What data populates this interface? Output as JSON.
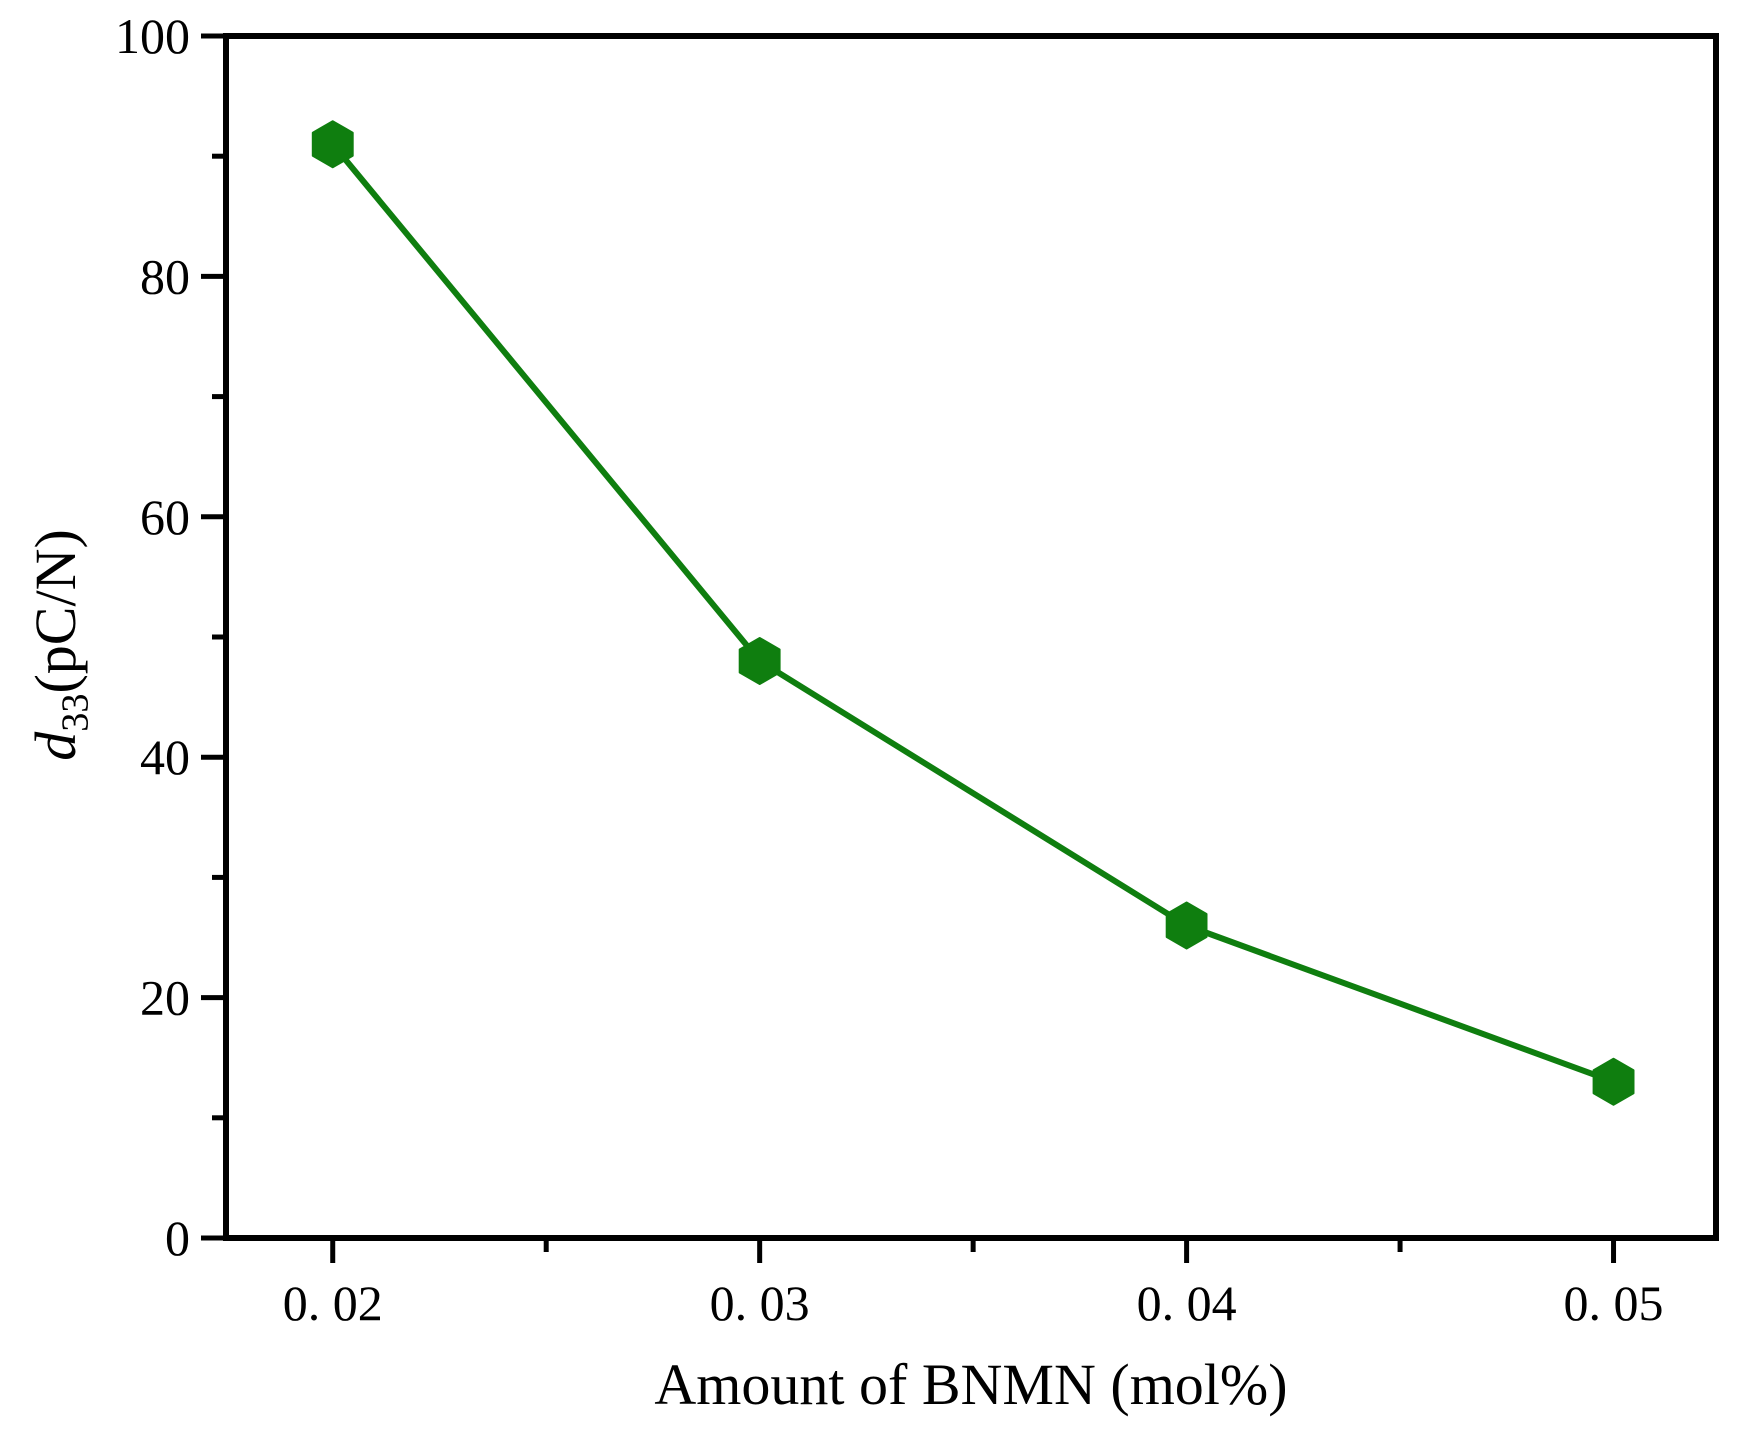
{
  "figure": {
    "background": "#ffffff"
  },
  "chart_data": {
    "type": "line",
    "title": "",
    "xlabel": "Amount of BNMN (mol%)",
    "ylabel": {
      "var": "d",
      "sub": "33",
      "unit": "(pC/N)"
    },
    "x": [
      0.02,
      0.03,
      0.04,
      0.05
    ],
    "y": [
      91,
      48,
      26,
      13
    ],
    "xlim": [
      0.0175,
      0.0524
    ],
    "ylim": [
      0,
      100
    ],
    "x_major_ticks": [
      0.02,
      0.03,
      0.04,
      0.05
    ],
    "x_major_tick_labels": [
      "0. 02",
      "0. 03",
      "0. 04",
      "0. 05"
    ],
    "x_minor_ticks": [
      0.025,
      0.035,
      0.045
    ],
    "y_major_ticks": [
      0,
      20,
      40,
      60,
      80,
      100
    ],
    "y_major_tick_labels": [
      "0",
      "20",
      "40",
      "60",
      "80",
      "100"
    ],
    "y_minor_ticks": [
      10,
      30,
      50,
      70,
      90
    ],
    "grid": false,
    "legend": null,
    "marker": "hexagon",
    "line_color": "#0f7e0f",
    "axis_color": "#000000",
    "text_color": "#000000"
  }
}
